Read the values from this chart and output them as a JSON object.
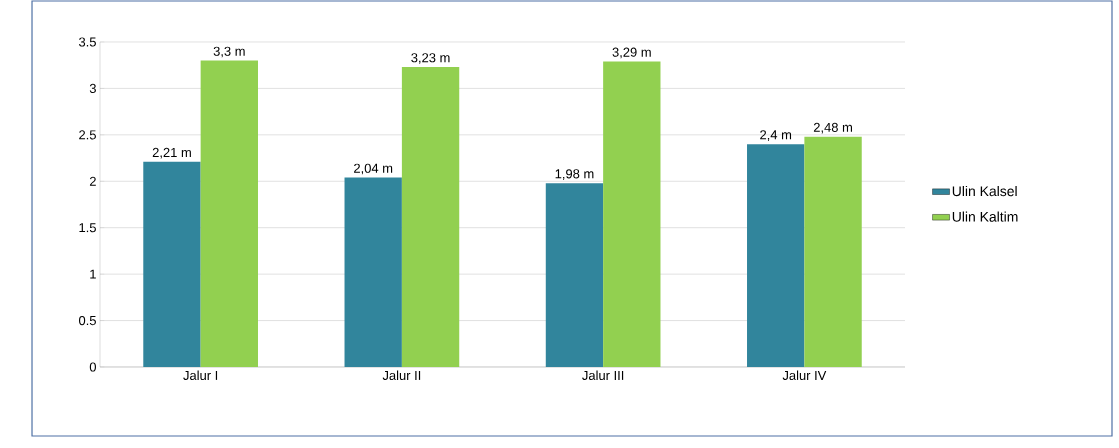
{
  "chart_data": {
    "type": "bar",
    "categories": [
      "Jalur I",
      "Jalur II",
      "Jalur III",
      "Jalur IV"
    ],
    "series": [
      {
        "name": "Ulin Kalsel",
        "color": "#31859c",
        "values": [
          2.21,
          2.04,
          1.98,
          2.4
        ],
        "value_labels": [
          "2,21 m",
          "2,04 m",
          "1,98 m",
          "2,4 m"
        ]
      },
      {
        "name": "Ulin Kaltim",
        "color": "#92d050",
        "values": [
          3.3,
          3.23,
          3.29,
          2.48
        ],
        "value_labels": [
          "3,3 m",
          "3,23 m",
          "3,29 m",
          "2,48 m"
        ]
      }
    ],
    "ylim": [
      0,
      3.5
    ],
    "yticks": [
      0,
      0.5,
      1,
      1.5,
      2,
      2.5,
      3,
      3.5
    ],
    "grid": "y",
    "legend": "right"
  }
}
